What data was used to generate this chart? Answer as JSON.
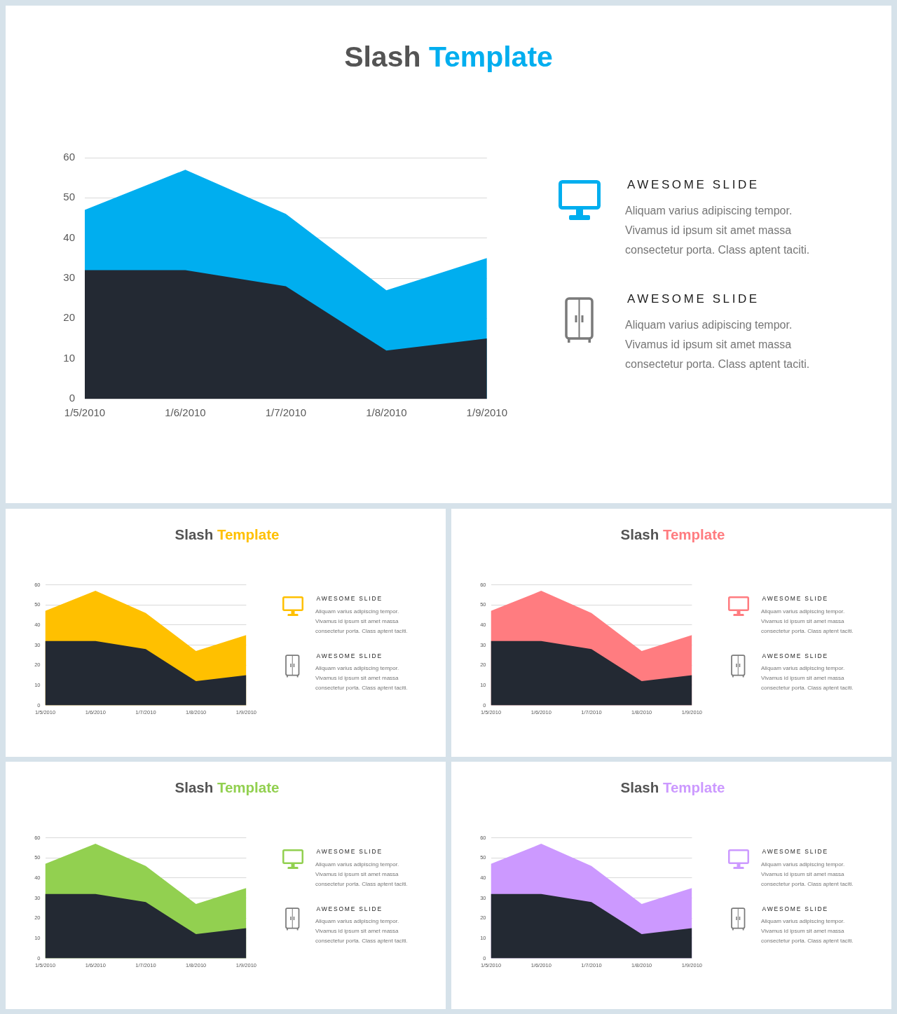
{
  "chart_data": [
    {
      "type": "area",
      "title": "Slash Template",
      "categories": [
        "1/5/2010",
        "1/6/2010",
        "1/7/2010",
        "1/8/2010",
        "1/9/2010"
      ],
      "series": [
        {
          "color": "#00aeef",
          "values": [
            47,
            57,
            46,
            27,
            35
          ]
        },
        {
          "color": "#232933",
          "values": [
            32,
            32,
            28,
            12,
            15
          ]
        }
      ],
      "ylim": [
        0,
        60
      ],
      "yticks": [
        0,
        10,
        20,
        30,
        40,
        50,
        60
      ],
      "grid": "y"
    },
    {
      "type": "other",
      "annotations": [
        "AWESOME SLIDE",
        "Aliquam varius adipiscing tempor. Vivamus id ipsum sit amet massa consectetur porta. Class aptent taciti.",
        "AWESOME SLIDE",
        "Aliquam varius adipiscing tempor. Vivamus id ipsum sit amet massa consectetur porta. Class aptent taciti."
      ]
    },
    {
      "type": "area",
      "title": "Slash Template",
      "categories": [
        "1/5/2010",
        "1/6/2010",
        "1/7/2010",
        "1/8/2010",
        "1/9/2010"
      ],
      "series": [
        {
          "color": "#ffc000",
          "values": [
            47,
            57,
            46,
            27,
            35
          ]
        },
        {
          "color": "#232933",
          "values": [
            32,
            32,
            28,
            12,
            15
          ]
        }
      ],
      "ylim": [
        0,
        60
      ],
      "yticks": [
        0,
        10,
        20,
        30,
        40,
        50,
        60
      ],
      "grid": "y"
    },
    {
      "type": "other",
      "annotations": [
        "AWESOME SLIDE",
        "Aliquam varius adipiscing tempor. Vivamus id ipsum sit amet massa consectetur porta. Class aptent taciti.",
        "AWESOME SLIDE",
        "Aliquam varius adipiscing tempor. Vivamus id ipsum sit amet massa consectetur porta. Class aptent taciti."
      ]
    },
    {
      "type": "area",
      "title": "Slash Template",
      "categories": [
        "1/5/2010",
        "1/6/2010",
        "1/7/2010",
        "1/8/2010",
        "1/9/2010"
      ],
      "series": [
        {
          "color": "#ff7c80",
          "values": [
            47,
            57,
            46,
            27,
            35
          ]
        },
        {
          "color": "#232933",
          "values": [
            32,
            32,
            28,
            12,
            15
          ]
        }
      ],
      "ylim": [
        0,
        60
      ],
      "yticks": [
        0,
        10,
        20,
        30,
        40,
        50,
        60
      ],
      "grid": "y"
    },
    {
      "type": "other",
      "annotations": [
        "AWESOME SLIDE",
        "Aliquam varius adipiscing tempor. Vivamus id ipsum sit amet massa consectetur porta. Class aptent taciti.",
        "AWESOME SLIDE",
        "Aliquam varius adipiscing tempor. Vivamus id ipsum sit amet massa consectetur porta. Class aptent taciti."
      ]
    },
    {
      "type": "area",
      "title": "Slash Template",
      "categories": [
        "1/5/2010",
        "1/6/2010",
        "1/7/2010",
        "1/8/2010",
        "1/9/2010"
      ],
      "series": [
        {
          "color": "#92d050",
          "values": [
            47,
            57,
            46,
            27,
            35
          ]
        },
        {
          "color": "#232933",
          "values": [
            32,
            32,
            28,
            12,
            15
          ]
        }
      ],
      "ylim": [
        0,
        60
      ],
      "yticks": [
        0,
        10,
        20,
        30,
        40,
        50,
        60
      ],
      "grid": "y"
    },
    {
      "type": "other",
      "annotations": [
        "AWESOME SLIDE",
        "Aliquam varius adipiscing tempor. Vivamus id ipsum sit amet massa consectetur porta. Class aptent taciti.",
        "AWESOME SLIDE",
        "Aliquam varius adipiscing tempor. Vivamus id ipsum sit amet massa consectetur porta. Class aptent taciti."
      ]
    },
    {
      "type": "area",
      "title": "Slash Template",
      "categories": [
        "1/5/2010",
        "1/6/2010",
        "1/7/2010",
        "1/8/2010",
        "1/9/2010"
      ],
      "series": [
        {
          "color": "#cc99ff",
          "values": [
            47,
            57,
            46,
            27,
            35
          ]
        },
        {
          "color": "#232933",
          "values": [
            32,
            32,
            28,
            12,
            15
          ]
        }
      ],
      "ylim": [
        0,
        60
      ],
      "yticks": [
        0,
        10,
        20,
        30,
        40,
        50,
        60
      ],
      "grid": "y"
    },
    {
      "type": "other",
      "annotations": [
        "AWESOME SLIDE",
        "Aliquam varius adipiscing tempor. Vivamus id ipsum sit amet massa consectetur porta. Class aptent taciti.",
        "AWESOME SLIDE",
        "Aliquam varius adipiscing tempor. Vivamus id ipsum sit amet massa consectetur porta. Class aptent taciti."
      ]
    }
  ]
}
